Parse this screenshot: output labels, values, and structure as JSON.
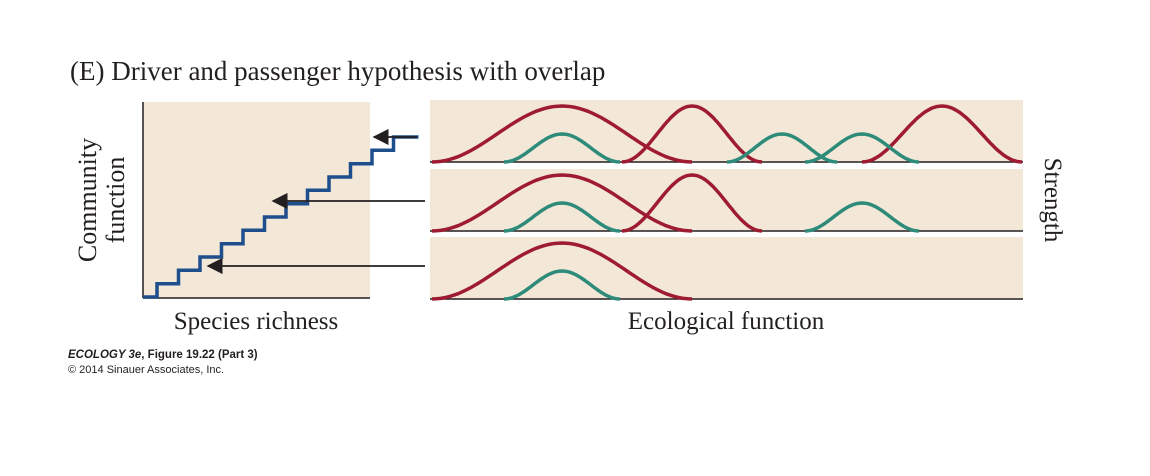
{
  "figure": {
    "title": "(E)  Driver and passenger hypothesis with overlap",
    "colors": {
      "background_panel": "#f3e8d8",
      "axis": "#231f20",
      "step_curve": "#1f4e8c",
      "driver_curve": "#9e1b32",
      "passenger_curve": "#2e8b7a",
      "arrow": "#231f20"
    },
    "left_panel": {
      "ylabel_line1": "Community",
      "ylabel_line2": "function",
      "xlabel": "Species richness",
      "step_levels": 12
    },
    "right_panel": {
      "xlabel": "Ecological function",
      "ylabel": "Strength",
      "rows": [
        {
          "drivers": [
            1,
            2,
            3
          ],
          "passengers": [
            1,
            2,
            3
          ]
        },
        {
          "drivers": [
            1,
            2
          ],
          "passengers": [
            1,
            3
          ]
        },
        {
          "drivers": [
            1
          ],
          "passengers": [
            1
          ]
        }
      ]
    },
    "caption": {
      "line1_italic": "ECOLOGY 3e",
      "line1_rest": ", Figure 19.22 (Part 3)",
      "line2": "© 2014 Sinauer Associates, Inc."
    }
  }
}
